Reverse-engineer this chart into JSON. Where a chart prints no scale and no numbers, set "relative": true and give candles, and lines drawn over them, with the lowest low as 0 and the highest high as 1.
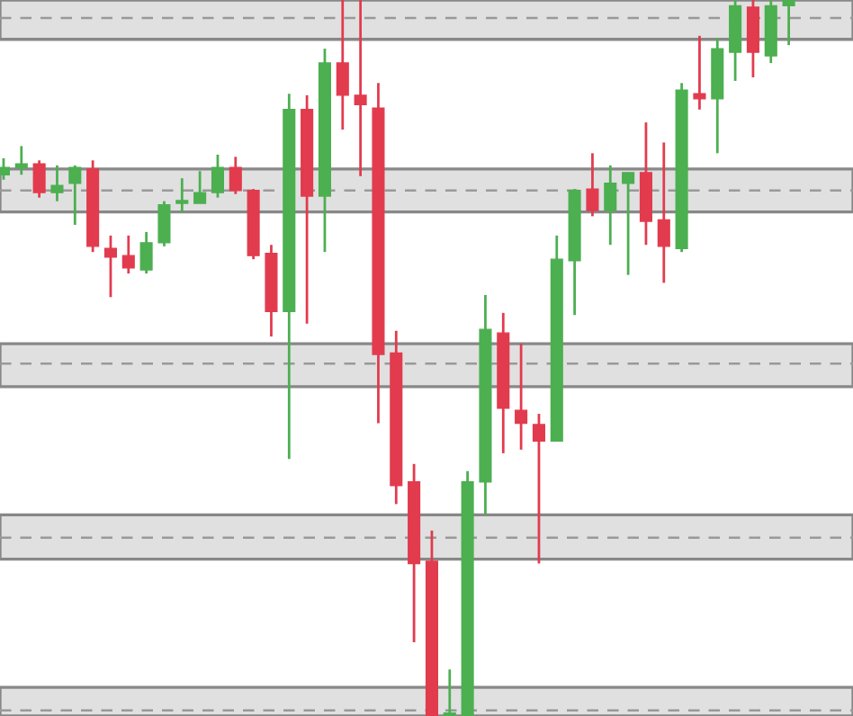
{
  "chart_data": {
    "type": "candlestick",
    "relative": true,
    "categories": [
      null,
      null,
      null,
      null,
      null,
      null,
      null,
      null,
      null,
      null,
      null,
      null,
      null,
      null,
      null,
      null,
      null,
      null,
      null,
      null,
      null,
      null,
      null,
      null,
      null,
      null,
      null,
      null,
      null,
      null,
      null,
      null,
      null,
      null,
      null,
      null,
      null,
      null,
      null,
      null,
      null,
      null,
      null,
      null,
      null
    ],
    "ohlc": [
      [
        0.756,
        0.779,
        0.749,
        0.766
      ],
      [
        0.766,
        0.796,
        0.756,
        0.771
      ],
      [
        0.771,
        0.776,
        0.724,
        0.731
      ],
      [
        0.731,
        0.769,
        0.719,
        0.741
      ],
      [
        0.744,
        0.769,
        0.686,
        0.766
      ],
      [
        0.764,
        0.776,
        0.648,
        0.656
      ],
      [
        0.653,
        0.671,
        0.585,
        0.641
      ],
      [
        0.643,
        0.671,
        0.618,
        0.626
      ],
      [
        0.623,
        0.676,
        0.618,
        0.661
      ],
      [
        0.661,
        0.719,
        0.656,
        0.714
      ],
      [
        0.716,
        0.751,
        0.703,
        0.719
      ],
      [
        0.716,
        0.761,
        0.716,
        0.731
      ],
      [
        0.731,
        0.784,
        0.724,
        0.766
      ],
      [
        0.766,
        0.781,
        0.729,
        0.734
      ],
      [
        0.734,
        0.736,
        0.638,
        0.643
      ],
      [
        0.646,
        0.658,
        0.53,
        0.565
      ],
      [
        0.565,
        0.869,
        0.359,
        0.847
      ],
      [
        0.847,
        0.867,
        0.548,
        0.726
      ],
      [
        0.726,
        0.932,
        0.648,
        0.912
      ],
      [
        0.912,
        1.0,
        0.819,
        0.867
      ],
      [
        0.867,
        1.0,
        0.754,
        0.854
      ],
      [
        0.849,
        0.884,
        0.409,
        0.505
      ],
      [
        0.507,
        0.538,
        0.296,
        0.322
      ],
      [
        0.327,
        0.352,
        0.103,
        0.213
      ],
      [
        0.216,
        0.259,
        0,
        0
      ],
      [
        0,
        0.065,
        0,
        0
      ],
      [
        0,
        0.342,
        0,
        0.327
      ],
      [
        0.327,
        0.588,
        0.281,
        0.54
      ],
      [
        0.535,
        0.563,
        0.367,
        0.43
      ],
      [
        0.427,
        0.52,
        0.372,
        0.409
      ],
      [
        0.407,
        0.422,
        0.213,
        0.384
      ],
      [
        0.384,
        0.671,
        0.384,
        0.638
      ],
      [
        0.636,
        0.736,
        0.56,
        0.734
      ],
      [
        0.736,
        0.786,
        0.698,
        0.706
      ],
      [
        0.706,
        0.769,
        0.658,
        0.744
      ],
      [
        0.744,
        0.759,
        0.616,
        0.759
      ],
      [
        0.759,
        0.829,
        0.658,
        0.691
      ],
      [
        0.693,
        0.801,
        0.605,
        0.656
      ],
      [
        0.653,
        0.884,
        0.648,
        0.874
      ],
      [
        0.869,
        0.95,
        0.847,
        0.862
      ],
      [
        0.862,
        0.947,
        0.786,
        0.932
      ],
      [
        0.927,
        1.0,
        0.887,
        0.992
      ],
      [
        0.99,
        1.0,
        0.892,
        0.927
      ],
      [
        0.922,
        1.0,
        0.912,
        0.992
      ],
      [
        0.992,
        1.0,
        0.937,
        1.0
      ]
    ],
    "colors": [
      "#4caf50",
      "#4caf50",
      "#e23b4e",
      "#4caf50",
      "#4caf50",
      "#e23b4e",
      "#e23b4e",
      "#e23b4e",
      "#4caf50",
      "#4caf50",
      "#4caf50",
      "#4caf50",
      "#4caf50",
      "#e23b4e",
      "#e23b4e",
      "#e23b4e",
      "#4caf50",
      "#e23b4e",
      "#4caf50",
      "#e23b4e",
      "#e23b4e",
      "#e23b4e",
      "#e23b4e",
      "#e23b4e",
      "#e23b4e",
      "#4caf50",
      "#4caf50",
      "#4caf50",
      "#e23b4e",
      "#e23b4e",
      "#e23b4e",
      "#4caf50",
      "#4caf50",
      "#e23b4e",
      "#4caf50",
      "#4caf50",
      "#e23b4e",
      "#e23b4e",
      "#4caf50",
      "#e23b4e",
      "#4caf50",
      "#4caf50",
      "#e23b4e",
      "#4caf50",
      "#4caf50"
    ],
    "bands": [
      {
        "axis": "y",
        "from": 0.945,
        "to": 1.0,
        "color": "#e0e0e0"
      },
      {
        "axis": "y",
        "from": 0.704,
        "to": 0.764,
        "color": "#e0e0e0"
      },
      {
        "axis": "y",
        "from": 0.46,
        "to": 0.52,
        "color": "#e0e0e0"
      },
      {
        "axis": "y",
        "from": 0.219,
        "to": 0.281,
        "color": "#e0e0e0"
      },
      {
        "axis": "y",
        "from": 0.0,
        "to": 0.04,
        "color": "#e0e0e0"
      }
    ],
    "ref_lines": [
      {
        "axis": "y",
        "value": 0.975,
        "color": "#999999",
        "line_style": "dashed"
      },
      {
        "axis": "y",
        "value": 0.734,
        "color": "#999999",
        "line_style": "dashed"
      },
      {
        "axis": "y",
        "value": 0.492,
        "color": "#999999",
        "line_style": "dashed"
      },
      {
        "axis": "y",
        "value": 0.249,
        "color": "#999999",
        "line_style": "dashed"
      },
      {
        "axis": "y",
        "value": 0.008,
        "color": "#999999",
        "line_style": "dashed"
      }
    ]
  }
}
